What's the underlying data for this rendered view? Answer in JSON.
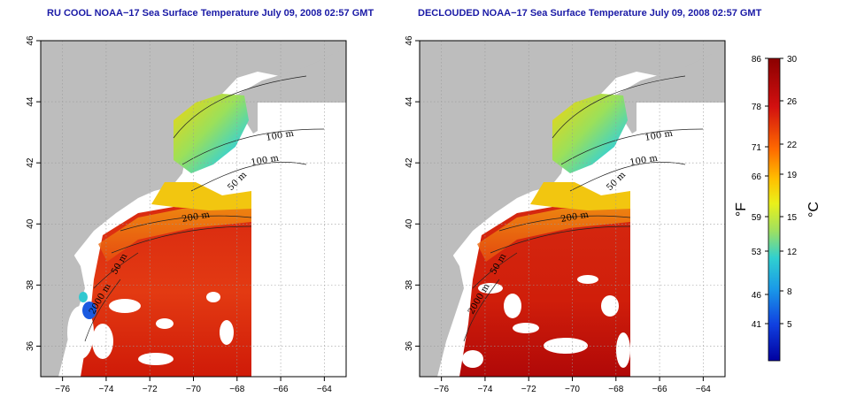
{
  "maps": [
    {
      "id": "left",
      "title": "RU COOL NOAA−17 Sea Surface Temperature July 09, 2008 02:57 GMT",
      "clouds": true
    },
    {
      "id": "right",
      "title": "DECLOUDED NOAA−17 Sea Surface Temperature July 09, 2008 02:57 GMT",
      "clouds": false
    }
  ],
  "x_ticks": [
    "−76",
    "−74",
    "−72",
    "−70",
    "−68",
    "−66",
    "−64"
  ],
  "y_ticks": [
    "46",
    "44",
    "42",
    "40",
    "38",
    "36"
  ],
  "contour_labels": [
    "100 m",
    "100 m",
    "50 m",
    "200 m",
    "50 m",
    "2000 m"
  ],
  "colorbar": {
    "fahrenheit_ticks": [
      "86",
      "78",
      "71",
      "66",
      "59",
      "53",
      "46",
      "41"
    ],
    "celsius_ticks": [
      "30",
      "26",
      "22",
      "19",
      "15",
      "12",
      "8",
      "5"
    ],
    "fahrenheit_unit": "°F",
    "celsius_unit": "°C"
  },
  "colors": {
    "land": "#bdbdbd",
    "warm": "#e0200a",
    "hot": "#c00000",
    "title": "#1a1aa6"
  }
}
